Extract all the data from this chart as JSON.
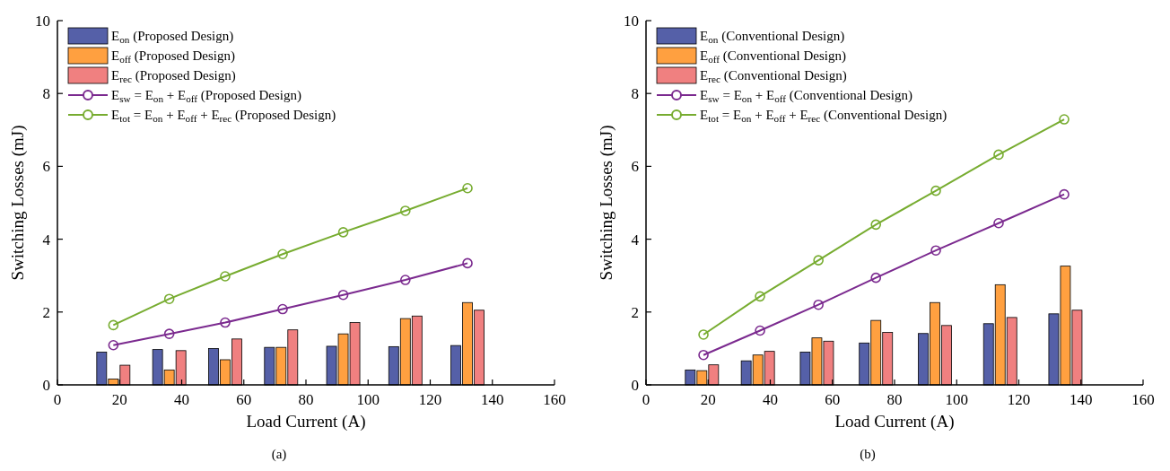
{
  "chart_data": [
    {
      "type": "bar",
      "xlabel": "Load Current (A)",
      "ylabel": "Switching Losses (mJ)",
      "annotations": [
        "(a)"
      ],
      "x": [
        18,
        36,
        54,
        72,
        92,
        112,
        132
      ],
      "xlim": [
        0,
        160
      ],
      "xticks": [
        0,
        20,
        40,
        60,
        80,
        100,
        120,
        140,
        160
      ],
      "ylim": [
        0,
        10
      ],
      "yticks": [
        0,
        2,
        4,
        6,
        8,
        10
      ],
      "legend": "top left",
      "grid": false,
      "series": [
        {
          "name": "E$_{on}$ (Proposed Design)",
          "color": "#5560a8",
          "values": [
            0.9,
            0.97,
            1.0,
            1.03,
            1.06,
            1.05,
            1.08
          ]
        },
        {
          "name": "E$_{off}$ (Proposed Design)",
          "color": "#ffa040",
          "values": [
            0.16,
            0.41,
            0.69,
            1.03,
            1.4,
            1.82,
            2.26
          ]
        },
        {
          "name": "E$_{rec}$ (Proposed Design)",
          "color": "#f08080",
          "values": [
            0.54,
            0.94,
            1.26,
            1.51,
            1.71,
            1.89,
            2.05
          ]
        },
        {
          "name": "E$_{sw}$ = E$_{on}$ + E$_{off}$ (Proposed Design)",
          "type": "line",
          "marker": "circle",
          "color": "#7b2a8f",
          "x": [
            18,
            36,
            54,
            72.5,
            92,
            112,
            132
          ],
          "values": [
            1.09,
            1.4,
            1.71,
            2.08,
            2.47,
            2.88,
            3.34
          ]
        },
        {
          "name": "E$_{tot}$ = E$_{on}$ + E$_{off}$ + E$_{rec}$ (Proposed Design)",
          "type": "line",
          "marker": "circle",
          "color": "#77ac30",
          "x": [
            18,
            36,
            54,
            72.5,
            92,
            112,
            132
          ],
          "values": [
            1.64,
            2.36,
            2.98,
            3.59,
            4.19,
            4.78,
            5.4
          ]
        }
      ]
    },
    {
      "type": "bar",
      "xlabel": "Load Current (A)",
      "ylabel": "Switching Losses (mJ)",
      "annotations": [
        "(b)"
      ],
      "x": [
        18,
        36,
        55,
        74,
        93,
        114,
        135
      ],
      "xlim": [
        0,
        160
      ],
      "xticks": [
        0,
        20,
        40,
        60,
        80,
        100,
        120,
        140,
        160
      ],
      "ylim": [
        0,
        10
      ],
      "yticks": [
        0,
        2,
        4,
        6,
        8,
        10
      ],
      "legend": "top left",
      "grid": false,
      "series": [
        {
          "name": "E$_{on}$ (Conventional Design)",
          "color": "#5560a8",
          "values": [
            0.41,
            0.66,
            0.9,
            1.15,
            1.41,
            1.68,
            1.95
          ]
        },
        {
          "name": "E$_{off}$ (Conventional Design)",
          "color": "#ffa040",
          "values": [
            0.39,
            0.82,
            1.29,
            1.77,
            2.26,
            2.75,
            3.26
          ]
        },
        {
          "name": "E$_{rec}$ (Conventional Design)",
          "color": "#f08080",
          "values": [
            0.55,
            0.92,
            1.2,
            1.44,
            1.63,
            1.85,
            2.05
          ]
        },
        {
          "name": "E$_{sw}$ = E$_{on}$ + E$_{off}$ (Conventional Design)",
          "type": "line",
          "marker": "circle",
          "color": "#7b2a8f",
          "x": [
            18.5,
            36.7,
            55.5,
            74,
            93.3,
            113.5,
            134.6
          ],
          "values": [
            0.82,
            1.49,
            2.2,
            2.94,
            3.69,
            4.44,
            5.23
          ]
        },
        {
          "name": "E$_{tot}$ = E$_{on}$ + E$_{off}$ + E$_{rec}$ (Conventional Design)",
          "type": "line",
          "marker": "circle",
          "color": "#77ac30",
          "x": [
            18.5,
            36.7,
            55.5,
            74,
            93.3,
            113.5,
            134.6
          ],
          "values": [
            1.38,
            2.43,
            3.42,
            4.4,
            5.33,
            6.32,
            7.29
          ]
        }
      ]
    }
  ]
}
